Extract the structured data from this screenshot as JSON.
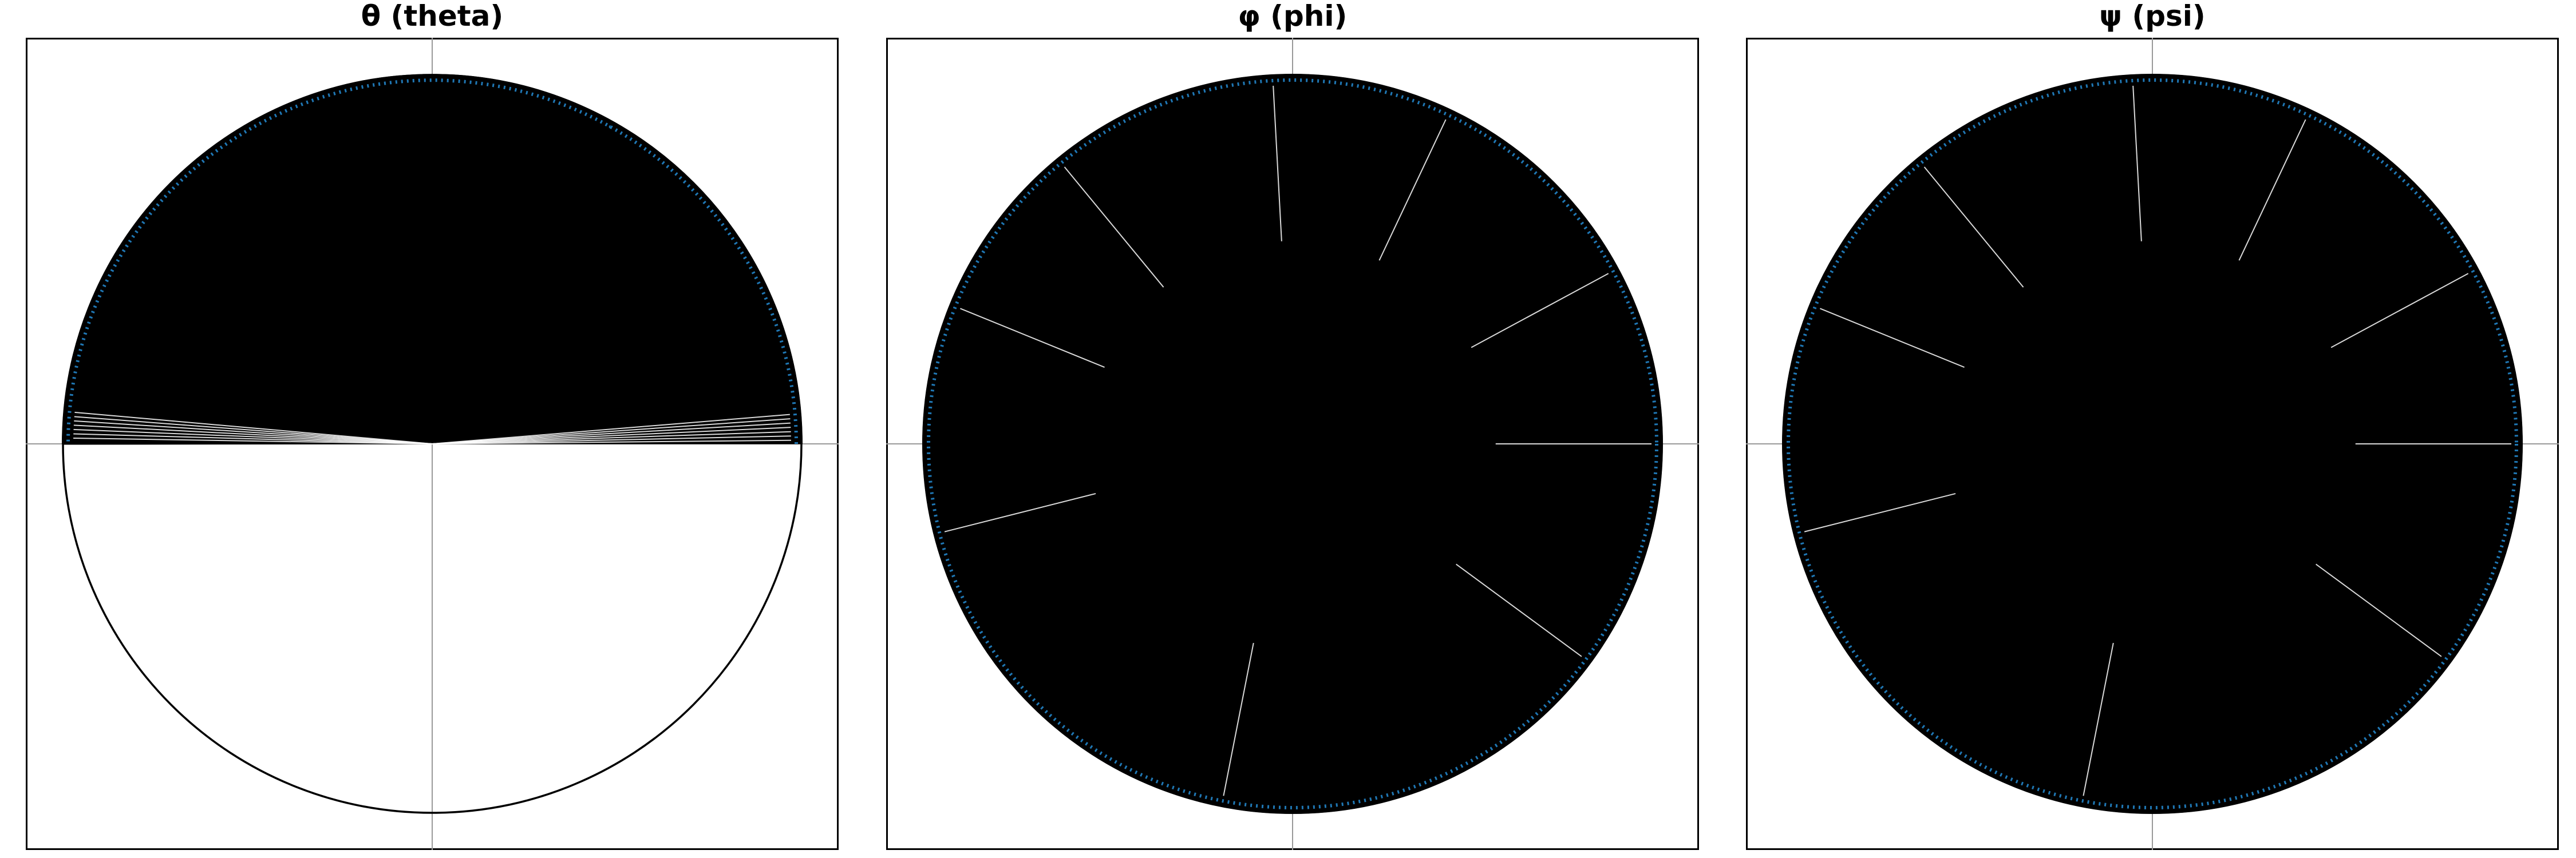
{
  "chart_data": [
    {
      "type": "circular-orientation",
      "title": "θ (theta)",
      "angle_range_deg": [
        0,
        180
      ],
      "unit_circle": true,
      "axes": "crosshair",
      "tick_marks": false,
      "grid": false,
      "colors": {
        "vector": "#000000",
        "arrowhead": "#1f77b4",
        "circle": "#000000",
        "axes": "#999999"
      }
    },
    {
      "type": "circular-orientation",
      "title": "φ (phi)",
      "angle_range_deg": [
        0,
        360
      ],
      "unit_circle": true,
      "axes": "crosshair",
      "tick_marks": false,
      "grid": false,
      "colors": {
        "vector": "#000000",
        "arrowhead": "#1f77b4",
        "circle": "#000000",
        "axes": "#999999"
      }
    },
    {
      "type": "circular-orientation",
      "title": "ψ (psi)",
      "angle_range_deg": [
        0,
        360
      ],
      "unit_circle": true,
      "axes": "crosshair",
      "tick_marks": false,
      "grid": false,
      "colors": {
        "vector": "#000000",
        "arrowhead": "#1f77b4",
        "circle": "#000000",
        "axes": "#999999"
      }
    }
  ]
}
